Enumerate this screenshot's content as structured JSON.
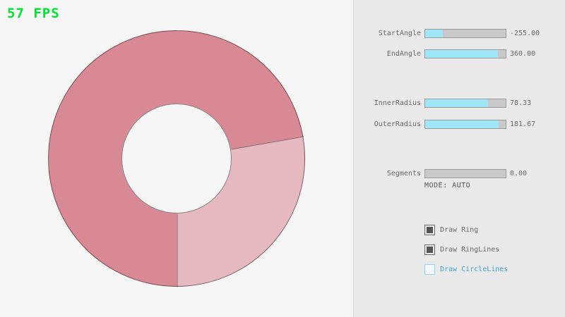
{
  "fps": "57 FPS",
  "colors": {
    "fps_green": "#00e430",
    "ring_dark": "#d98994",
    "ring_light": "#e6b9c0",
    "accent_fill": "#9fe6f8",
    "checkbox_blue": "#3da2c8"
  },
  "sliders": [
    {
      "label": "StartAngle",
      "value": "-255.00",
      "fill_pct": 21.7
    },
    {
      "label": "EndAngle",
      "value": "360.00",
      "fill_pct": 90.0
    },
    {
      "label": "InnerRadius",
      "value": "78.33",
      "fill_pct": 78.3
    },
    {
      "label": "OuterRadius",
      "value": "181.67",
      "fill_pct": 90.8
    },
    {
      "label": "Segments",
      "value": "0.00",
      "fill_pct": 0
    }
  ],
  "mode_text": "MODE: AUTO",
  "checkboxes": [
    {
      "label": "Draw Ring",
      "checked": true,
      "focused": false
    },
    {
      "label": "Draw RingLines",
      "checked": true,
      "focused": false
    },
    {
      "label": "Draw CircleLines",
      "checked": false,
      "focused": true
    }
  ]
}
